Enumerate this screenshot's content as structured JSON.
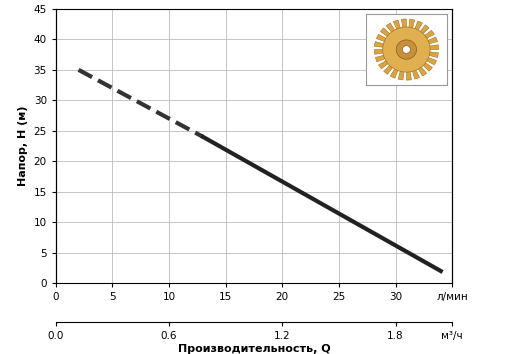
{
  "chart_data": {
    "type": "line",
    "x_label": "Производительность, Q",
    "y_label": "Напор, H (м)",
    "series": [
      {
        "x": [
          2,
          13
        ],
        "values": [
          35,
          24
        ],
        "color": "#333333",
        "line_style": "dashed"
      },
      {
        "x": [
          13,
          34
        ],
        "values": [
          24,
          2
        ],
        "color": "#222222",
        "line_style": "solid"
      }
    ],
    "xlim": [
      0,
      35
    ],
    "xticks": [
      0,
      5,
      10,
      15,
      20,
      25,
      30,
      {
        "value": 35,
        "label": "л/мин"
      }
    ],
    "x2lim": [
      0,
      2.1
    ],
    "x2ticks": [
      0.0,
      0.6,
      1.2,
      1.8,
      {
        "value": 2.1,
        "label": "м³/ч"
      }
    ],
    "ylim": [
      0,
      45
    ],
    "yticks": [
      0,
      5,
      10,
      15,
      20,
      25,
      30,
      35,
      40,
      45
    ],
    "grid": true
  }
}
